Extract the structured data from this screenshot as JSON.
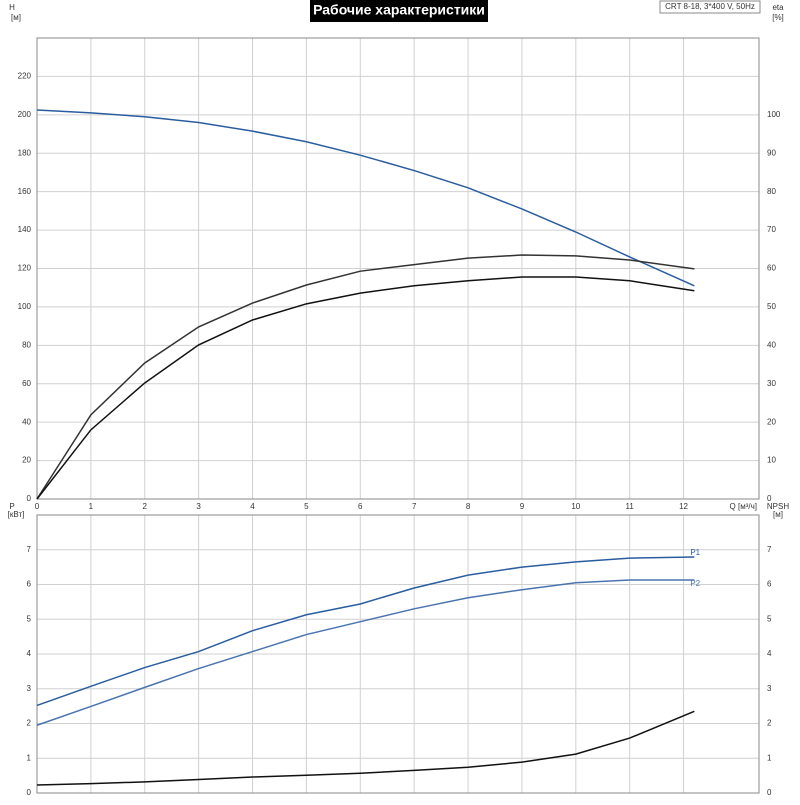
{
  "chart_data": [
    {
      "type": "line",
      "title": "Рабочие характеристики",
      "annotation": "CRT 8-18, 3*400 V, 50Hz",
      "ylabel": "H",
      "ylabel_unit": "[м]",
      "y2label": "eta",
      "y2label_unit": "[%]",
      "xlabel": "Q [м³/ч]",
      "x": [
        0,
        1,
        2,
        3,
        4,
        5,
        6,
        7,
        8,
        9,
        10,
        11,
        12.2
      ],
      "xlim": [
        0,
        13.4
      ],
      "xticks": [
        0,
        1,
        2,
        3,
        4,
        5,
        6,
        7,
        8,
        9,
        10,
        11,
        12
      ],
      "ylim": [
        0,
        240
      ],
      "yticks": [
        0,
        20,
        40,
        60,
        80,
        100,
        120,
        140,
        160,
        180,
        200,
        220
      ],
      "y2lim": [
        0,
        120
      ],
      "y2ticks": [
        0,
        10,
        20,
        30,
        40,
        50,
        60,
        70,
        80,
        90,
        100
      ],
      "grid": true,
      "series": [
        {
          "color": "#2a5d9f",
          "values": [
            202.5,
            201,
            199,
            196,
            191.5,
            186,
            179,
            171,
            162,
            151,
            139,
            126,
            111
          ]
        },
        {
          "color": "#333333",
          "axis": "y2",
          "values": [
            0,
            21.9,
            35.4,
            44.8,
            51,
            55.7,
            59.3,
            61,
            62.7,
            63.5,
            63.3,
            62.2,
            59.9
          ]
        },
        {
          "color": "#111111",
          "axis": "y2",
          "values": [
            0,
            18,
            30.2,
            40.1,
            46.6,
            50.8,
            53.6,
            55.5,
            56.8,
            57.8,
            57.8,
            56.8,
            54.2
          ]
        }
      ]
    },
    {
      "type": "line",
      "ylabel": "P",
      "ylabel_unit": "[кВт]",
      "y2label": "NPSH",
      "y2label_unit": "[м]",
      "x": [
        0,
        1,
        2,
        3,
        4,
        5,
        6,
        7,
        8,
        9,
        10,
        11,
        12.2
      ],
      "xlim": [
        0,
        13.4
      ],
      "ylim": [
        0,
        8
      ],
      "yticks": [
        0,
        1,
        2,
        3,
        4,
        5,
        6,
        7
      ],
      "y2lim": [
        0,
        8
      ],
      "y2ticks": [
        0,
        1,
        2,
        3,
        4,
        5,
        6,
        7
      ],
      "grid": true,
      "series": [
        {
          "name": "P1",
          "color": "#2a5d9f",
          "values": [
            2.52,
            3.07,
            3.61,
            4.07,
            4.67,
            5.13,
            5.44,
            5.9,
            6.27,
            6.5,
            6.65,
            6.76,
            6.79
          ]
        },
        {
          "name": "P2",
          "color": "#4a74b0",
          "values": [
            1.95,
            2.49,
            3.04,
            3.58,
            4.07,
            4.56,
            4.93,
            5.3,
            5.62,
            5.85,
            6.05,
            6.13,
            6.13
          ]
        },
        {
          "color": "#111111",
          "axis": "y2",
          "values": [
            0.23,
            0.27,
            0.32,
            0.39,
            0.46,
            0.51,
            0.57,
            0.65,
            0.74,
            0.89,
            1.12,
            1.58,
            2.35
          ]
        }
      ]
    }
  ]
}
